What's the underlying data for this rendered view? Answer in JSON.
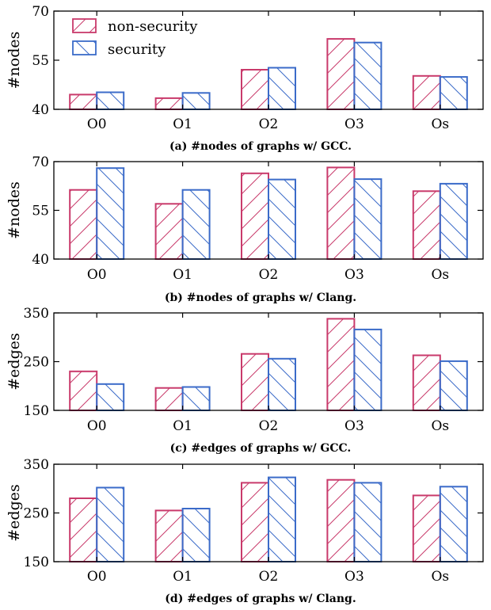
{
  "colors": {
    "non_security": "#c93a6b",
    "security": "#3b6bc9"
  },
  "legend": [
    {
      "label": "non-security",
      "hatch": "forward"
    },
    {
      "label": "security",
      "hatch": "backward"
    }
  ],
  "chart_data": [
    {
      "type": "bar",
      "caption": "(a) #nodes of graphs w/ GCC.",
      "ylabel": "#nodes",
      "ylim": [
        40,
        70
      ],
      "yticks": [
        40,
        55,
        70
      ],
      "categories": [
        "O0",
        "O1",
        "O2",
        "O3",
        "Os"
      ],
      "legend_position": "top-left",
      "series": [
        {
          "name": "non-security",
          "values": [
            44.5,
            43.4,
            52.1,
            61.5,
            50.2
          ]
        },
        {
          "name": "security",
          "values": [
            45.2,
            45.0,
            52.7,
            60.4,
            49.9
          ]
        }
      ]
    },
    {
      "type": "bar",
      "caption": "(b) #nodes of graphs w/ Clang.",
      "ylabel": "#nodes",
      "ylim": [
        40,
        70
      ],
      "yticks": [
        40,
        55,
        70
      ],
      "categories": [
        "O0",
        "O1",
        "O2",
        "O3",
        "Os"
      ],
      "series": [
        {
          "name": "non-security",
          "values": [
            61.3,
            57.0,
            66.4,
            68.2,
            60.9
          ]
        },
        {
          "name": "security",
          "values": [
            68.0,
            61.3,
            64.5,
            64.6,
            63.2
          ]
        }
      ]
    },
    {
      "type": "bar",
      "caption": "(c) #edges of graphs w/ GCC.",
      "ylabel": "#edges",
      "ylim": [
        150,
        350
      ],
      "yticks": [
        150,
        250,
        350
      ],
      "categories": [
        "O0",
        "O1",
        "O2",
        "O3",
        "Os"
      ],
      "series": [
        {
          "name": "non-security",
          "values": [
            230,
            196,
            266,
            338,
            263
          ]
        },
        {
          "name": "security",
          "values": [
            204,
            198,
            256,
            316,
            251
          ]
        }
      ]
    },
    {
      "type": "bar",
      "caption": "(d) #edges of graphs w/ Clang.",
      "ylabel": "#edges",
      "ylim": [
        150,
        350
      ],
      "yticks": [
        150,
        250,
        350
      ],
      "categories": [
        "O0",
        "O1",
        "O2",
        "O3",
        "Os"
      ],
      "series": [
        {
          "name": "non-security",
          "values": [
            280,
            255,
            312,
            318,
            286
          ]
        },
        {
          "name": "security",
          "values": [
            302,
            259,
            323,
            312,
            304
          ]
        }
      ]
    }
  ]
}
